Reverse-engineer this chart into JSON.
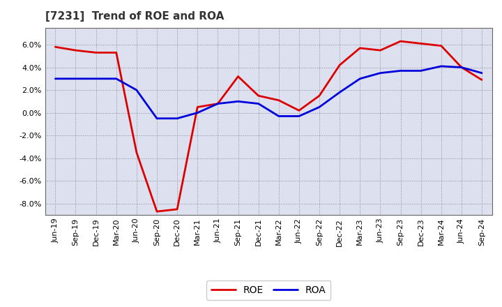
{
  "title": "[7231]  Trend of ROE and ROA",
  "x_labels": [
    "Jun-19",
    "Sep-19",
    "Dec-19",
    "Mar-20",
    "Jun-20",
    "Sep-20",
    "Dec-20",
    "Mar-21",
    "Jun-21",
    "Sep-21",
    "Dec-21",
    "Mar-22",
    "Jun-22",
    "Sep-22",
    "Dec-22",
    "Mar-23",
    "Jun-23",
    "Sep-23",
    "Dec-23",
    "Mar-24",
    "Jun-24",
    "Sep-24"
  ],
  "roe": [
    5.8,
    5.5,
    5.3,
    5.3,
    -3.5,
    -8.7,
    -8.5,
    0.5,
    0.8,
    3.2,
    1.5,
    1.1,
    0.2,
    1.5,
    4.2,
    5.7,
    5.5,
    6.3,
    6.1,
    5.9,
    4.0,
    2.9
  ],
  "roa": [
    3.0,
    3.0,
    3.0,
    3.0,
    2.0,
    -0.5,
    -0.5,
    0.0,
    0.8,
    1.0,
    0.8,
    -0.3,
    -0.3,
    0.5,
    1.8,
    3.0,
    3.5,
    3.7,
    3.7,
    4.1,
    4.0,
    3.5
  ],
  "roe_color": "#dd0000",
  "roa_color": "#0000dd",
  "background_color": "#ffffff",
  "plot_bg_color": "#dde0ee",
  "grid_color": "#888899",
  "ylim": [
    -9.0,
    7.5
  ],
  "yticks": [
    -8.0,
    -6.0,
    -4.0,
    -2.0,
    0.0,
    2.0,
    4.0,
    6.0
  ],
  "title_fontsize": 11,
  "legend_fontsize": 10,
  "tick_fontsize": 8,
  "linewidth": 2.0
}
